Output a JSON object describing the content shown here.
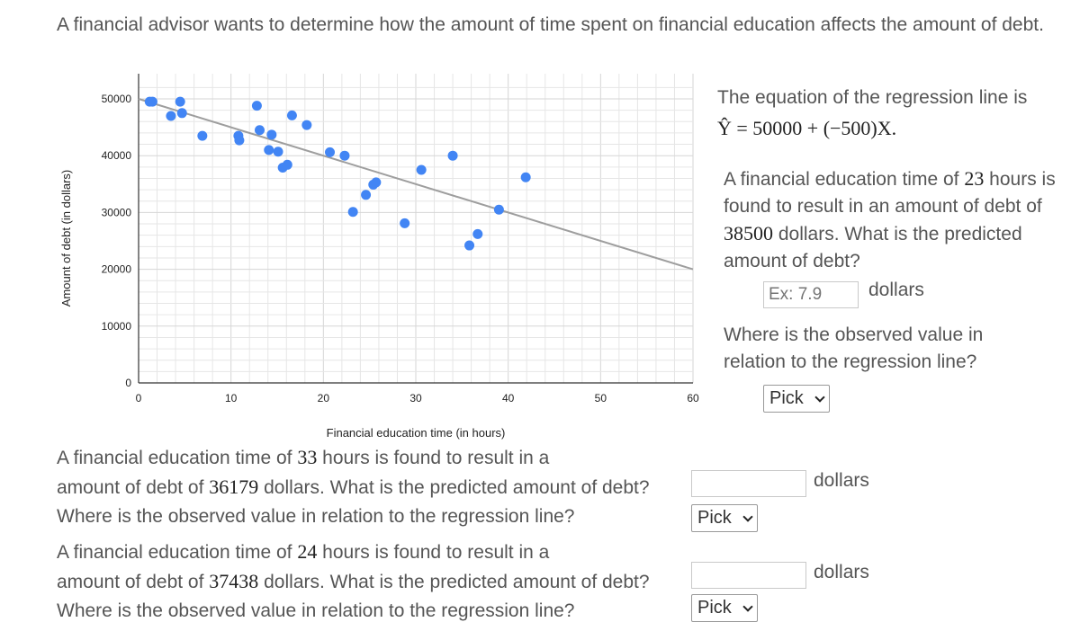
{
  "intro": "A financial advisor wants to determine how the amount of time spent on financial education affects the amount of debt.",
  "chart_data": {
    "type": "scatter",
    "xlabel": "Financial education time (in hours)",
    "ylabel": "Amount of debt (in dollars)",
    "xlim": [
      0,
      60
    ],
    "ylim": [
      0,
      50000
    ],
    "x_ticks": [
      "0",
      "10",
      "20",
      "30",
      "40",
      "50",
      "60"
    ],
    "y_ticks": [
      "0",
      "10000",
      "20000",
      "30000",
      "40000",
      "50000"
    ],
    "grid": true,
    "points": [
      {
        "x": 1.5,
        "y": 49500
      },
      {
        "x": 1.2,
        "y": 49500
      },
      {
        "x": 3.5,
        "y": 47000
      },
      {
        "x": 4.5,
        "y": 49500
      },
      {
        "x": 4.7,
        "y": 47500
      },
      {
        "x": 6.9,
        "y": 43500
      },
      {
        "x": 10.8,
        "y": 43500
      },
      {
        "x": 10.9,
        "y": 42700
      },
      {
        "x": 12.8,
        "y": 48800
      },
      {
        "x": 13.1,
        "y": 44500
      },
      {
        "x": 14.1,
        "y": 41000
      },
      {
        "x": 14.4,
        "y": 43700
      },
      {
        "x": 15.1,
        "y": 40700
      },
      {
        "x": 15.6,
        "y": 37900
      },
      {
        "x": 16.1,
        "y": 38400
      },
      {
        "x": 16.6,
        "y": 47100
      },
      {
        "x": 18.2,
        "y": 45400
      },
      {
        "x": 20.7,
        "y": 40600
      },
      {
        "x": 22.3,
        "y": 40000
      },
      {
        "x": 23.2,
        "y": 30100
      },
      {
        "x": 24.6,
        "y": 33100
      },
      {
        "x": 25.4,
        "y": 34900
      },
      {
        "x": 25.7,
        "y": 35300
      },
      {
        "x": 28.8,
        "y": 28100
      },
      {
        "x": 30.6,
        "y": 37500
      },
      {
        "x": 34.0,
        "y": 40000
      },
      {
        "x": 35.8,
        "y": 24200
      },
      {
        "x": 36.7,
        "y": 26200
      },
      {
        "x": 39.0,
        "y": 30500
      },
      {
        "x": 41.9,
        "y": 36200
      }
    ],
    "regression_line": {
      "intercept": 50000,
      "slope": -500
    },
    "colors": {
      "points": "#4285f4",
      "line": "#9e9e9e",
      "grid": "#e6e6e6",
      "axis": "#333333"
    }
  },
  "panel": {
    "eq_intro": "The equation of the regression line is",
    "equation": "Ŷ = 50000 + (−500)X.",
    "q1": {
      "p1": "A financial education time of ",
      "hours": "23",
      "p2": " hours is found to result in an amount of debt of ",
      "debt": "38500",
      "p3": " dollars. What is the predicted amount of debt?",
      "placeholder": "Ex: 7.9",
      "unit": "dollars",
      "relation_q": "Where is the observed value in relation to the regression line?",
      "select": "Pick"
    }
  },
  "q2": {
    "p1": "A financial education time of ",
    "hours": "33",
    "p2": " hours is found to result in a",
    "p3": "amount of debt of ",
    "debt": "36179",
    "p4": " dollars. What is the predicted amount of debt?",
    "unit": "dollars",
    "relation_q": "Where is the observed value in relation to the regression line?",
    "select": "Pick"
  },
  "q3": {
    "p1": "A financial education time of ",
    "hours": "24",
    "p2": " hours is found to result in a",
    "p3": "amount of debt of ",
    "debt": "37438",
    "p4": " dollars. What is the predicted amount of debt?",
    "unit": "dollars",
    "relation_q": "Where is the observed value in relation to the regression line?",
    "select": "Pick"
  }
}
